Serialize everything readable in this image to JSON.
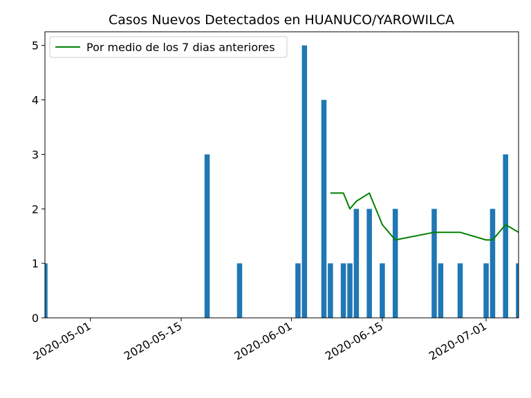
{
  "chart_data": {
    "type": "bar",
    "title": "Casos Nuevos Detectados en HUANUCO/YAROWILCA",
    "xlabel": "",
    "ylabel": "",
    "x_start": "2020-04-24",
    "xlim_days": [
      0,
      73
    ],
    "ylim": [
      0,
      5.25
    ],
    "yticks": [
      "0",
      "1",
      "2",
      "3",
      "4",
      "5"
    ],
    "xticks": [
      {
        "label": "2020-05-01",
        "day": 7
      },
      {
        "label": "2020-05-15",
        "day": 21
      },
      {
        "label": "2020-06-01",
        "day": 38
      },
      {
        "label": "2020-06-15",
        "day": 52
      },
      {
        "label": "2020-07-01",
        "day": 68
      }
    ],
    "bars": {
      "days": [
        0,
        25,
        30,
        39,
        40,
        43,
        44,
        46,
        47,
        48,
        50,
        52,
        54,
        60,
        61,
        64,
        68,
        69,
        71,
        73
      ],
      "values": [
        1,
        3,
        1,
        1,
        5,
        4,
        1,
        1,
        1,
        2,
        2,
        1,
        2,
        2,
        1,
        1,
        1,
        2,
        3,
        1
      ],
      "color": "#1f77b4"
    },
    "series": [
      {
        "name": "Por medio de los 7 dias anteriores",
        "color": "#008000",
        "days": [
          44,
          46,
          47,
          48,
          50,
          52,
          54,
          60,
          61,
          64,
          68,
          69,
          71,
          73
        ],
        "values": [
          2.29,
          2.29,
          2.0,
          2.14,
          2.29,
          1.71,
          1.43,
          1.57,
          1.57,
          1.57,
          1.43,
          1.43,
          1.71,
          1.57
        ]
      }
    ],
    "legend": {
      "position": "top-left",
      "label": "Por medio de los 7 dias anteriores"
    },
    "grid": false
  }
}
